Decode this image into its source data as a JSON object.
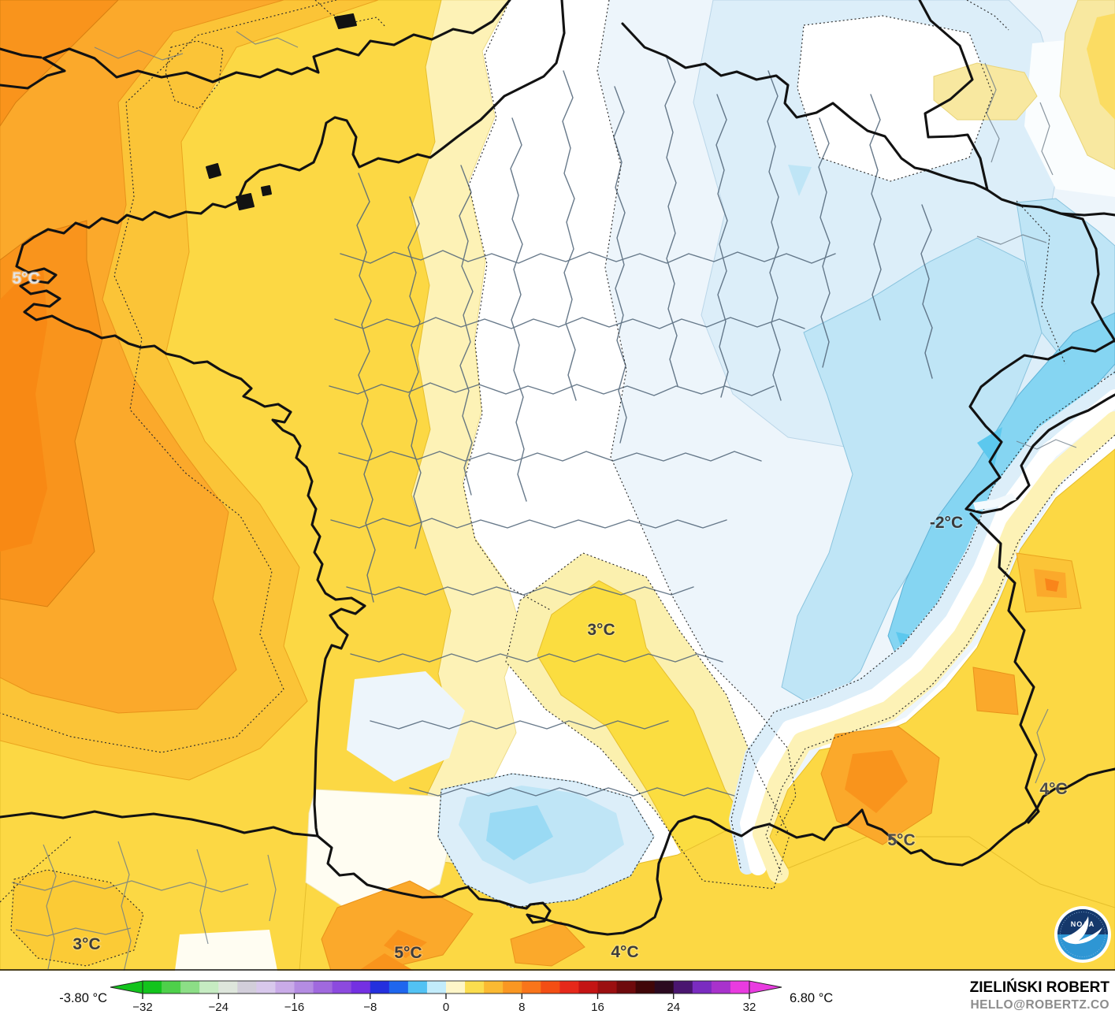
{
  "map": {
    "labels": [
      {
        "text": "5°C",
        "color": "#e4e4e4"
      },
      {
        "text": "-2°C",
        "color": "#3a3a3a"
      },
      {
        "text": "3°C",
        "color": "#3d3d3d"
      },
      {
        "text": "3°C",
        "color": "#3d3d3d"
      },
      {
        "text": "5°C",
        "color": "#3d3d3d"
      },
      {
        "text": "4°C",
        "color": "#3d3d3d"
      },
      {
        "text": "5°C",
        "color": "#4a4a4a"
      },
      {
        "text": "4°C",
        "color": "#4a4a4a"
      }
    ],
    "noaa_text": "NOAA",
    "field_colors": {
      "warm_core": "#F9941C",
      "warm_orange": "#FBA92B",
      "warm_mid": "#FBC437",
      "warm_yellow": "#FCD844",
      "warm_pale": "#FDF2B6",
      "cold_pale": "#EDF5FB",
      "cold_light": "#DCEEF9",
      "cold_mid": "#BFE5F6",
      "cold_cyan": "#85D5F2",
      "cold_deep": "#5CC8EE",
      "neutral": "#FFFFFF"
    }
  },
  "colorbar": {
    "min_label": "-3.80 °C",
    "max_label": "6.80 °C",
    "range": [
      -32,
      32
    ],
    "ticks": [
      {
        "value": -32,
        "label": "−32"
      },
      {
        "value": -24,
        "label": "−24"
      },
      {
        "value": -16,
        "label": "−16"
      },
      {
        "value": -8,
        "label": "−8"
      },
      {
        "value": 0,
        "label": "0"
      },
      {
        "value": 8,
        "label": "8"
      },
      {
        "value": 16,
        "label": "16"
      },
      {
        "value": 24,
        "label": "24"
      },
      {
        "value": 32,
        "label": "32"
      }
    ],
    "segment_colors": [
      "#12C41C",
      "#4ED04A",
      "#8CDE86",
      "#C6ECC2",
      "#DEE6DC",
      "#D2CEDA",
      "#D8C8EC",
      "#C9ABE8",
      "#B48CE2",
      "#A069DE",
      "#8C4ADF",
      "#7430E2",
      "#2430DE",
      "#1E66EE",
      "#52C2F4",
      "#C2ECFB",
      "#FEF6C8",
      "#FBDD4E",
      "#FBBA32",
      "#FA9722",
      "#F9751A",
      "#F34E14",
      "#E6281A",
      "#C41414",
      "#9B0F10",
      "#6E0A0C",
      "#400608",
      "#2B0A20",
      "#4A1670",
      "#7A2CC0",
      "#A832CC",
      "#E93BE0"
    ]
  },
  "attribution": {
    "name": "ZIELIŃSKI ROBERT",
    "email": "HELLO@ROBERTZ.CO"
  }
}
